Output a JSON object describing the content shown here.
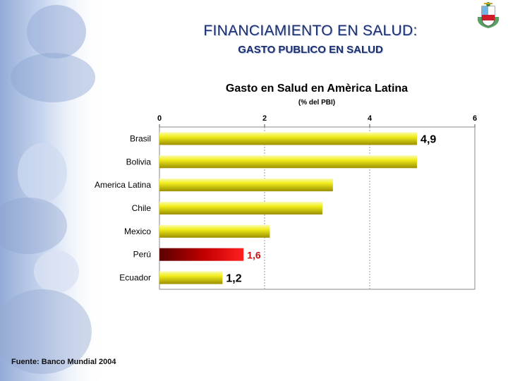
{
  "slide": {
    "title": "FINANCIAMIENTO EN SALUD:",
    "subtitle": "GASTO PUBLICO EN SALUD",
    "source": "Fuente: Banco Mundial 2004"
  },
  "colors": {
    "title": "#1c2f6e",
    "bar": "#e8e400",
    "bar_highlight": "#ff1a1a",
    "label_highlight": "#cc1111"
  },
  "chart_data": {
    "type": "bar",
    "orientation": "horizontal",
    "title": "Gasto en Salud en Amèrica Latina",
    "subtitle": "(% del PBI)",
    "xlim": [
      0,
      6
    ],
    "x_ticks": [
      "0",
      "2",
      "4",
      "6"
    ],
    "grid": "vertical dashed",
    "categories": [
      "Brasil",
      "Bolivia",
      "America Latina",
      "Chile",
      "Mexico",
      "Perú",
      "Ecuador"
    ],
    "values": [
      4.9,
      4.9,
      3.3,
      3.1,
      2.1,
      1.6,
      1.2
    ],
    "highlight": "Perú",
    "data_labels": [
      {
        "category": "Brasil",
        "text": "4,9"
      },
      {
        "category": "Perú",
        "text": "1,6"
      },
      {
        "category": "Ecuador",
        "text": "1,2"
      }
    ]
  }
}
